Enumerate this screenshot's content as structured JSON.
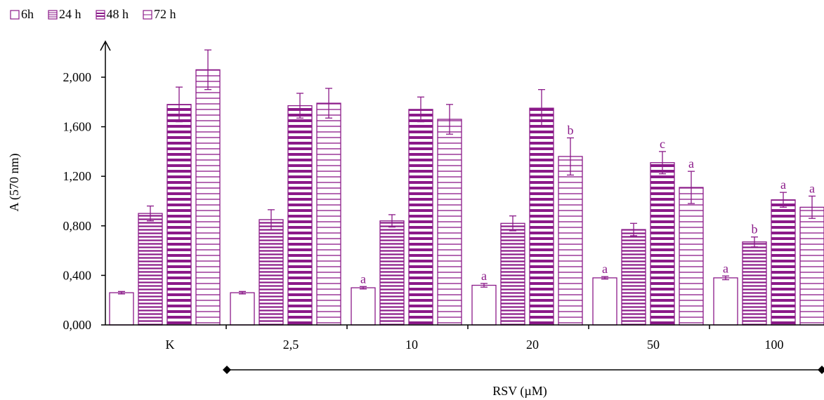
{
  "chart_data": {
    "type": "bar",
    "ylabel": "A (570 nm)",
    "xlabel": "RSV (µM)",
    "ylim": [
      0,
      2.2
    ],
    "yticks": [
      "0,000",
      "0,400",
      "0,800",
      "1,200",
      "1,600",
      "2,000"
    ],
    "ytick_values": [
      0,
      0.4,
      0.8,
      1.2,
      1.6,
      2.0
    ],
    "categories": [
      "K",
      "2,5",
      "10",
      "20",
      "50",
      "100"
    ],
    "legend_position": "top-left",
    "series": [
      {
        "name": "6h",
        "pattern": "open",
        "values": [
          0.26,
          0.26,
          0.3,
          0.32,
          0.38,
          0.38
        ],
        "errors": [
          0.01,
          0.01,
          0.01,
          0.015,
          0.01,
          0.015
        ],
        "labels": [
          "",
          "",
          "a",
          "a",
          "a",
          "a"
        ]
      },
      {
        "name": "24 h",
        "pattern": "dense-horizontal",
        "values": [
          0.9,
          0.85,
          0.84,
          0.82,
          0.77,
          0.67
        ],
        "errors": [
          0.06,
          0.08,
          0.05,
          0.06,
          0.05,
          0.04
        ],
        "labels": [
          "",
          "",
          "",
          "",
          "",
          "b"
        ]
      },
      {
        "name": "48 h",
        "pattern": "wide-horizontal-bold",
        "values": [
          1.78,
          1.77,
          1.74,
          1.75,
          1.31,
          1.01
        ],
        "errors": [
          0.14,
          0.1,
          0.1,
          0.15,
          0.09,
          0.06
        ],
        "labels": [
          "",
          "",
          "",
          "",
          "c",
          "a"
        ]
      },
      {
        "name": "72 h",
        "pattern": "wide-horizontal",
        "values": [
          2.06,
          1.79,
          1.66,
          1.36,
          1.11,
          0.95
        ],
        "errors": [
          0.16,
          0.12,
          0.12,
          0.15,
          0.13,
          0.09
        ],
        "labels": [
          "",
          "",
          "",
          "b",
          "a",
          "a"
        ]
      }
    ],
    "colors": {
      "bar_stroke": "#8b1a89",
      "annotation": "#8b1a89",
      "axis": "#000000"
    }
  }
}
